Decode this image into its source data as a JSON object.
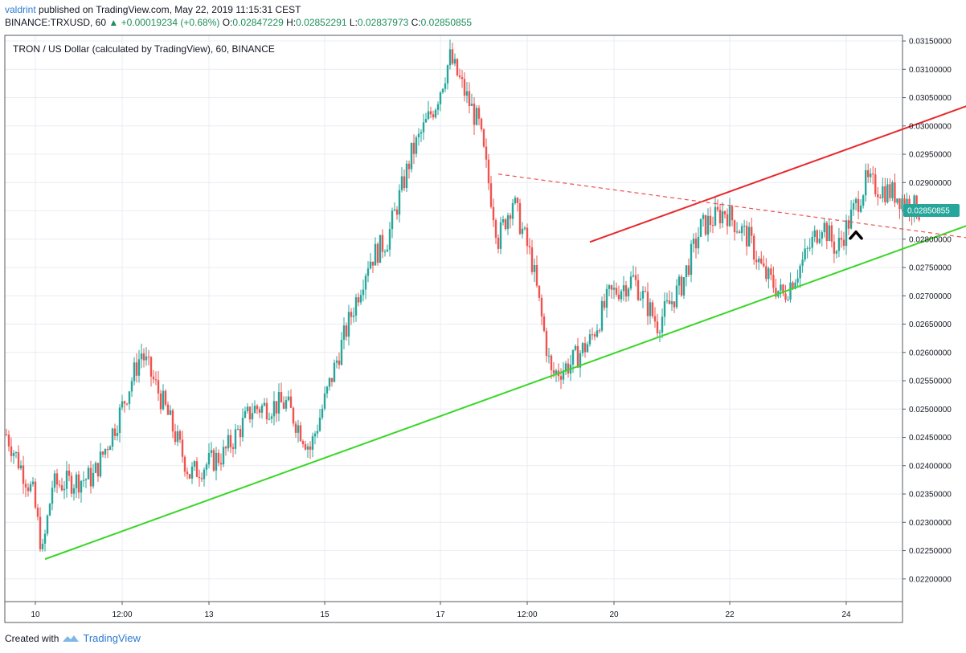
{
  "header": {
    "author": "valdrint",
    "published_text": "published on TradingView.com, May 22, 2019 11:15:31 CEST",
    "symbol": "BINANCE:TRXUSD, 60",
    "change": "+0.00019234 (+0.68%)",
    "ohlc": {
      "o_label": "O:",
      "o": "0.02847229",
      "h_label": "H:",
      "h": "0.02852291",
      "l_label": "L:",
      "l": "0.02837973",
      "c_label": "C:",
      "c": "0.02850855"
    }
  },
  "footer": {
    "created_with": "Created with",
    "brand": "TradingView"
  },
  "colors": {
    "up": "#26a69a",
    "down": "#ef5350",
    "resistance": "#e8282b",
    "support": "#3ad628",
    "dashed": "#ef4f4f",
    "price_label_bg": "#26a69a",
    "grid": "#e8ecf2",
    "axis": "#54585f"
  },
  "chart_data": {
    "type": "candlestick",
    "title": "TRON / US Dollar (calculated by TradingView), 60, BINANCE",
    "x_ticks": [
      "10",
      "12:00",
      "13",
      "15",
      "17",
      "12:00",
      "20",
      "22",
      "24"
    ],
    "y_ticks": [
      "0.03150000",
      "0.03100000",
      "0.03050000",
      "0.03000000",
      "0.02950000",
      "0.02900000",
      "0.02850000",
      "0.02800000",
      "0.02750000",
      "0.02700000",
      "0.02650000",
      "0.02600000",
      "0.02550000",
      "0.02500000",
      "0.02450000",
      "0.02400000",
      "0.02350000",
      "0.02300000",
      "0.02250000",
      "0.02200000"
    ],
    "ylim": [
      0.0216,
      0.0316
    ],
    "last_price": "0.02850855",
    "price_path": [
      [
        "2019-05-09T12:00",
        0.02455
      ],
      [
        "2019-05-09T23:00",
        0.0235
      ],
      [
        "2019-05-10T03:00",
        0.02245
      ],
      [
        "2019-05-10T07:00",
        0.02365
      ],
      [
        "2019-05-11T00:00",
        0.0238
      ],
      [
        "2019-05-11T10:00",
        0.0248
      ],
      [
        "2019-05-11T20:00",
        0.026
      ],
      [
        "2019-05-12T06:00",
        0.025
      ],
      [
        "2019-05-12T16:00",
        0.02385
      ],
      [
        "2019-05-13T06:00",
        0.0242
      ],
      [
        "2019-05-13T18:00",
        0.025
      ],
      [
        "2019-05-14T08:00",
        0.0251
      ],
      [
        "2019-05-14T18:00",
        0.0243
      ],
      [
        "2019-05-15T06:00",
        0.026
      ],
      [
        "2019-05-15T18:00",
        0.0276
      ],
      [
        "2019-05-16T02:00",
        0.028
      ],
      [
        "2019-05-16T12:00",
        0.0295
      ],
      [
        "2019-05-16T22:00",
        0.0304
      ],
      [
        "2019-05-17T04:00",
        0.0312
      ],
      [
        "2019-05-17T16:00",
        0.03
      ],
      [
        "2019-05-18T00:00",
        0.028
      ],
      [
        "2019-05-18T06:00",
        0.0287
      ],
      [
        "2019-05-18T14:00",
        0.0276
      ],
      [
        "2019-05-18T22:00",
        0.0256
      ],
      [
        "2019-05-19T06:00",
        0.0258
      ],
      [
        "2019-05-19T14:00",
        0.0262
      ],
      [
        "2019-05-19T22:00",
        0.027
      ],
      [
        "2019-05-20T08:00",
        0.0273
      ],
      [
        "2019-05-20T18:00",
        0.0265
      ],
      [
        "2019-05-21T04:00",
        0.0272
      ],
      [
        "2019-05-21T12:00",
        0.0282
      ],
      [
        "2019-05-21T22:00",
        0.0285
      ],
      [
        "2019-05-22T08:00",
        0.028
      ],
      [
        "2019-05-22T14:00",
        0.0274
      ],
      [
        "2019-05-22T22:00",
        0.027
      ],
      [
        "2019-05-23T06:00",
        0.0276
      ],
      [
        "2019-05-23T14:00",
        0.0283
      ],
      [
        "2019-05-23T20:00",
        0.0278
      ],
      [
        "2019-05-24T02:00",
        0.0284
      ],
      [
        "2019-05-24T08:00",
        0.029
      ],
      [
        "2019-05-24T20:00",
        0.0288
      ],
      [
        "2019-05-25T06:00",
        0.0285
      ]
    ],
    "annotations": {
      "support_line": [
        [
          "2019-05-10T04:00",
          0.02235
        ],
        [
          "2019-05-26T12:00",
          0.0284
        ]
      ],
      "resistance_line": [
        [
          "2019-05-19T14:00",
          0.02795
        ],
        [
          "2019-05-26T08:00",
          0.03045
        ]
      ],
      "dashed_line": [
        [
          "2019-05-18T00:00",
          0.02915
        ],
        [
          "2019-05-26T06:00",
          0.028
        ]
      ],
      "breakout_arrow": [
        "2019-05-24T04:00",
        0.0281
      ]
    }
  }
}
